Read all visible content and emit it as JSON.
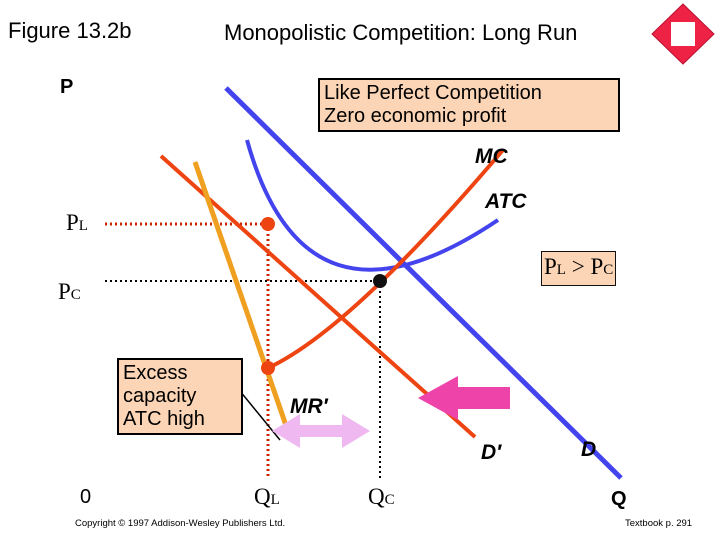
{
  "figure_label": "Figure 13.2b",
  "title": "Monopolistic Competition: Long Run",
  "axes": {
    "y_label": "P",
    "x_label": "Q",
    "origin": "0"
  },
  "price_labels": {
    "pl": "P",
    "pl_sub": "L",
    "pc": "P",
    "pc_sub": "C"
  },
  "quantity_labels": {
    "ql": "Q",
    "ql_sub": "L",
    "qc": "Q",
    "qc_sub": "C"
  },
  "curve_labels": {
    "mc": "MC",
    "atc": "ATC",
    "mr_prime": "MR′",
    "d_prime": "D′",
    "d": "D"
  },
  "callouts": {
    "perfect_competition": [
      "Like Perfect Competition",
      "Zero economic profit"
    ],
    "excess_capacity": [
      "Excess",
      "capacity",
      "ATC high"
    ]
  },
  "comparison": {
    "left": "P",
    "left_sub": "L",
    "op": " > ",
    "right": "P",
    "right_sub": "C"
  },
  "footer": {
    "copyright": "Copyright © 1997 Addison-Wesley Publishers Ltd.",
    "textbook": "Textbook p. 291"
  },
  "colors": {
    "demand": "#4444ee",
    "mr_mc": "#ee4411",
    "atc": "#4444ee",
    "d_prime": "#f0a020",
    "arrow_left": "#ee44aa",
    "arrow_double": "#f0b8f0",
    "callout_bg": "#fbd5b5",
    "logo": "#ee2244"
  }
}
